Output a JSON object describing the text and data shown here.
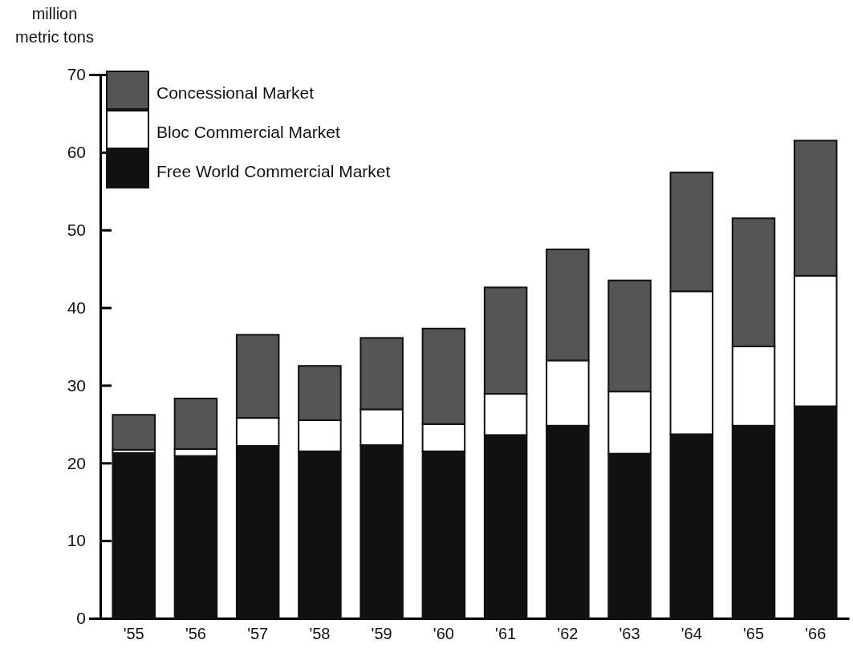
{
  "chart_data": {
    "type": "bar",
    "stacked": true,
    "ylabel": "million metric tons",
    "categories": [
      "'55",
      "'56",
      "'57",
      "'58",
      "'59",
      "'60",
      "'61",
      "'62",
      "'63",
      "'64",
      "'65",
      "'66"
    ],
    "series": [
      {
        "name": "Free World Commercial Market",
        "color": "#111111",
        "values": [
          21.3,
          20.9,
          22.2,
          21.5,
          22.3,
          21.5,
          23.6,
          24.8,
          21.2,
          23.7,
          24.8,
          27.3
        ]
      },
      {
        "name": "Bloc Commercial Market",
        "color": "#ffffff",
        "values": [
          0.4,
          0.9,
          3.6,
          4.0,
          4.6,
          3.5,
          5.3,
          8.4,
          8.0,
          18.4,
          10.2,
          16.8
        ]
      },
      {
        "name": "Concessional Market",
        "color": "#555555",
        "values": [
          4.5,
          6.5,
          10.7,
          7.0,
          9.2,
          12.3,
          13.7,
          14.3,
          14.3,
          15.3,
          16.5,
          17.4
        ]
      }
    ],
    "ylim": [
      0,
      70
    ],
    "yticks": [
      0,
      10,
      20,
      30,
      40,
      50,
      60,
      70
    ],
    "grid": false,
    "legend": "top left"
  }
}
